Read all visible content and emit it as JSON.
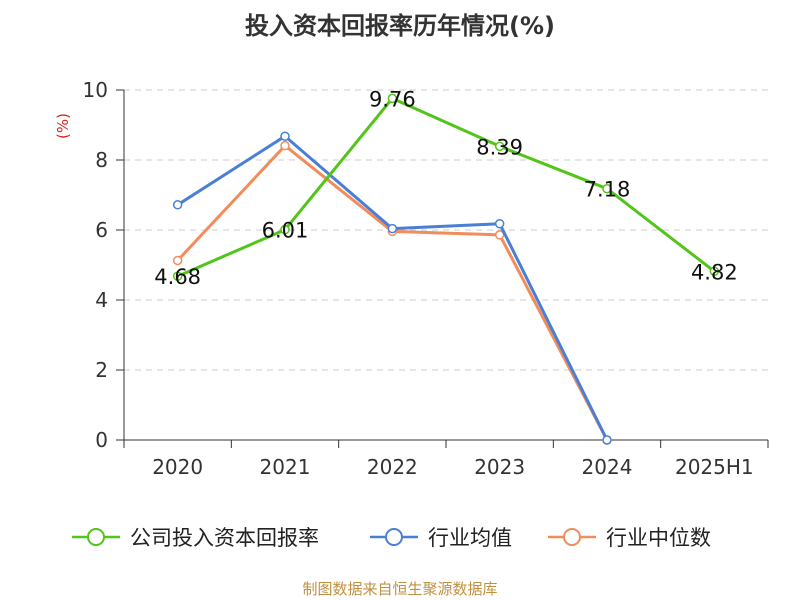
{
  "chart_data": {
    "type": "line",
    "title": "投入资本回报率历年情况(%)",
    "ylabel": "(%)",
    "xlabel": "",
    "categories": [
      "2020",
      "2021",
      "2022",
      "2023",
      "2024",
      "2025H1"
    ],
    "ylim": [
      0,
      10
    ],
    "yticks": [
      0,
      2,
      4,
      6,
      8,
      10
    ],
    "grid": true,
    "legend_position": "bottom",
    "series": [
      {
        "name": "公司投入资本回报率",
        "color": "#52c41a",
        "values": [
          4.68,
          6.01,
          9.76,
          8.39,
          7.18,
          4.82
        ],
        "labels": [
          "4.68",
          "6.01",
          "9.76",
          "8.39",
          "7.18",
          "4.82"
        ]
      },
      {
        "name": "行业均值",
        "color": "#4a7fd6",
        "values": [
          6.72,
          8.68,
          6.04,
          6.18,
          0.0,
          null
        ]
      },
      {
        "name": "行业中位数",
        "color": "#f28c5a",
        "values": [
          5.13,
          8.41,
          5.96,
          5.86,
          0.0,
          null
        ]
      }
    ]
  },
  "source": "制图数据来自恒生聚源数据库",
  "colors": {
    "axis": "#333333",
    "grid": "#cccccc",
    "ylabel": "#e02020",
    "source": "#c09040"
  }
}
